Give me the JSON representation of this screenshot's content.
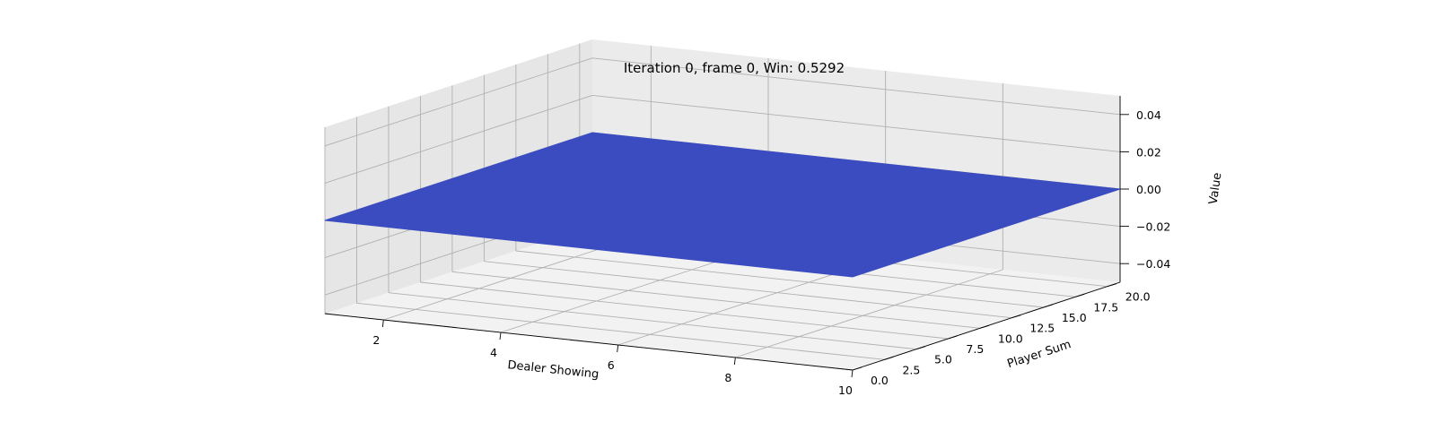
{
  "chart_data": {
    "type": "surface3d",
    "title": "Iteration 0, frame 0, Win: 0.5292",
    "xlabel": "Dealer Showing",
    "ylabel": "Player Sum",
    "zlabel": "Value",
    "x_range": [
      1,
      10
    ],
    "y_range": [
      0,
      21
    ],
    "z_range": [
      -0.05,
      0.05
    ],
    "x_ticks": [
      "2",
      "4",
      "6",
      "8",
      "10"
    ],
    "y_ticks": [
      "0.0",
      "2.5",
      "5.0",
      "7.5",
      "10.0",
      "12.5",
      "15.0",
      "17.5",
      "20.0"
    ],
    "z_ticks": [
      "−0.04",
      "−0.02",
      "0.00",
      "0.02",
      "0.04"
    ],
    "surface": {
      "x_from": 1,
      "x_to": 10,
      "y_from": 0,
      "y_to": 21,
      "z_value": 0.0
    },
    "surface_color": "#3b4cc0",
    "grid": true
  }
}
